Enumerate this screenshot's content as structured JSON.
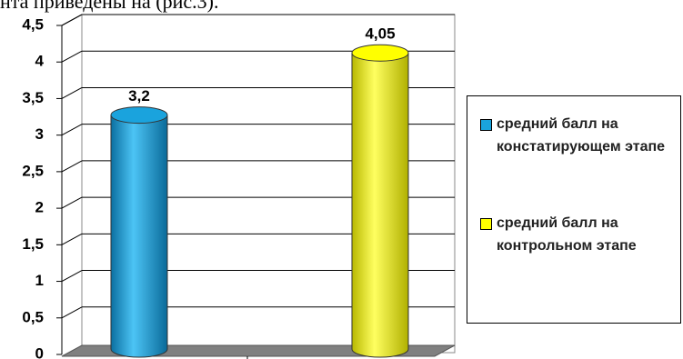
{
  "chart_data": {
    "type": "bar",
    "caption": "нта приведены на (рис.3).",
    "categories": [
      null
    ],
    "series": [
      {
        "name": "средний балл на констатирующем этапе",
        "color": "#1aa3dd",
        "values": [
          3.2
        ],
        "value_labels": [
          "3,2"
        ]
      },
      {
        "name": "средний балл на контрольном этапе",
        "color": "#ffff00",
        "values": [
          4.05
        ],
        "value_labels": [
          "4,05"
        ]
      }
    ],
    "ylim": [
      0,
      4.5
    ],
    "yticks": [
      0,
      {
        "value": 0.5,
        "label": "0,5"
      },
      1,
      {
        "value": 1.5,
        "label": "1,5"
      },
      2,
      {
        "value": 2.5,
        "label": "2,5"
      },
      3,
      {
        "value": 3.5,
        "label": "3,5"
      },
      4,
      {
        "value": 4.5,
        "label": "4,5"
      }
    ],
    "grid": true,
    "legend": "right"
  }
}
